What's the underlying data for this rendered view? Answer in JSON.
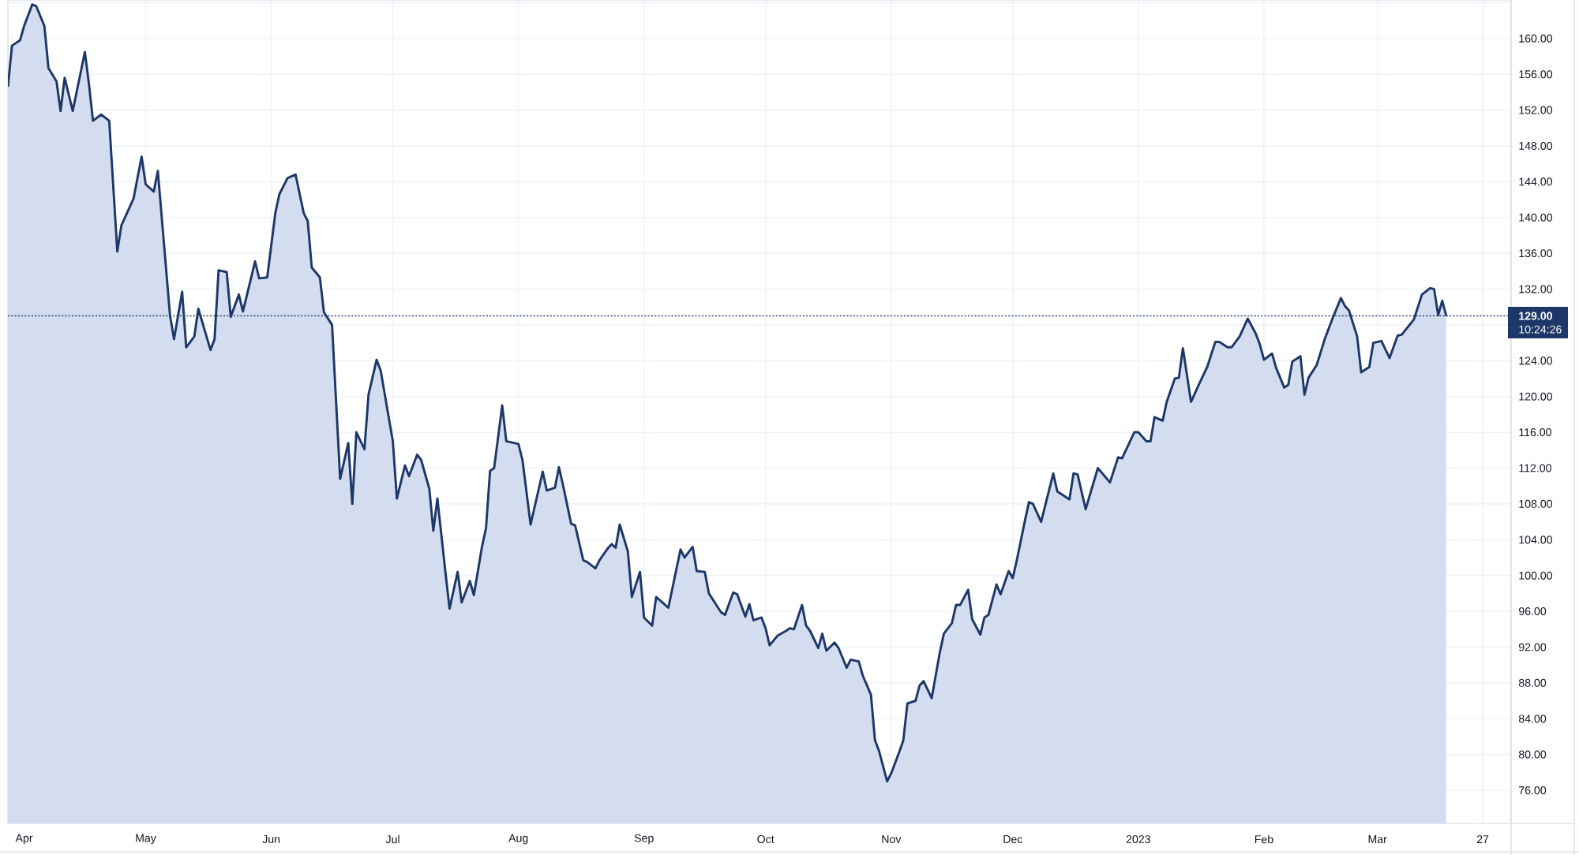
{
  "chart_data": {
    "type": "area",
    "color": "#1d3868",
    "x": [
      "2022-03-28",
      "2022-03-29",
      "2022-03-31",
      "2022-04-01",
      "2022-04-03",
      "2022-04-04",
      "2022-04-06",
      "2022-04-07",
      "2022-04-09",
      "2022-04-10",
      "2022-04-11",
      "2022-04-13",
      "2022-04-16",
      "2022-04-17",
      "2022-04-18",
      "2022-04-20",
      "2022-04-22",
      "2022-04-24",
      "2022-04-25",
      "2022-04-28",
      "2022-04-30",
      "2022-05-01",
      "2022-05-03",
      "2022-05-04",
      "2022-05-07",
      "2022-05-08",
      "2022-05-10",
      "2022-05-11",
      "2022-05-13",
      "2022-05-14",
      "2022-05-17",
      "2022-05-18",
      "2022-05-19",
      "2022-05-21",
      "2022-05-22",
      "2022-05-24",
      "2022-05-25",
      "2022-05-27",
      "2022-05-28",
      "2022-05-29",
      "2022-05-31",
      "2022-06-02",
      "2022-06-03",
      "2022-06-05",
      "2022-06-07",
      "2022-06-09",
      "2022-06-10",
      "2022-06-11",
      "2022-06-13",
      "2022-06-14",
      "2022-06-16",
      "2022-06-18",
      "2022-06-20",
      "2022-06-21",
      "2022-06-22",
      "2022-06-24",
      "2022-06-25",
      "2022-06-27",
      "2022-06-28",
      "2022-07-01",
      "2022-07-02",
      "2022-07-04",
      "2022-07-05",
      "2022-07-07",
      "2022-07-08",
      "2022-07-10",
      "2022-07-11",
      "2022-07-12",
      "2022-07-14",
      "2022-07-15",
      "2022-07-17",
      "2022-07-18",
      "2022-07-20",
      "2022-07-21",
      "2022-07-23",
      "2022-07-24",
      "2022-07-25",
      "2022-07-26",
      "2022-07-28",
      "2022-07-29",
      "2022-08-01",
      "2022-08-02",
      "2022-08-04",
      "2022-08-07",
      "2022-08-08",
      "2022-08-10",
      "2022-08-11",
      "2022-08-12",
      "2022-08-14",
      "2022-08-15",
      "2022-08-17",
      "2022-08-18",
      "2022-08-20",
      "2022-08-21",
      "2022-08-23",
      "2022-08-24",
      "2022-08-25",
      "2022-08-26",
      "2022-08-28",
      "2022-08-29",
      "2022-08-31",
      "2022-09-01",
      "2022-09-03",
      "2022-09-04",
      "2022-09-07",
      "2022-09-10",
      "2022-09-11",
      "2022-09-13",
      "2022-09-14",
      "2022-09-16",
      "2022-09-17",
      "2022-09-20",
      "2022-09-21",
      "2022-09-23",
      "2022-09-24",
      "2022-09-26",
      "2022-09-27",
      "2022-09-28",
      "2022-09-30",
      "2022-10-01",
      "2022-10-02",
      "2022-10-04",
      "2022-10-06",
      "2022-10-07",
      "2022-10-08",
      "2022-10-10",
      "2022-10-11",
      "2022-10-12",
      "2022-10-14",
      "2022-10-15",
      "2022-10-16",
      "2022-10-18",
      "2022-10-19",
      "2022-10-21",
      "2022-10-22",
      "2022-10-24",
      "2022-10-25",
      "2022-10-27",
      "2022-10-28",
      "2022-10-29",
      "2022-10-31",
      "2022-11-01",
      "2022-11-03",
      "2022-11-04",
      "2022-11-05",
      "2022-11-07",
      "2022-11-08",
      "2022-11-09",
      "2022-11-11",
      "2022-11-13",
      "2022-11-14",
      "2022-11-16",
      "2022-11-17",
      "2022-11-18",
      "2022-11-20",
      "2022-11-21",
      "2022-11-23",
      "2022-11-24",
      "2022-11-25",
      "2022-11-27",
      "2022-11-28",
      "2022-11-30",
      "2022-12-01",
      "2022-12-02",
      "2022-12-04",
      "2022-12-05",
      "2022-12-06",
      "2022-12-08",
      "2022-12-11",
      "2022-12-12",
      "2022-12-15",
      "2022-12-16",
      "2022-12-17",
      "2022-12-19",
      "2022-12-22",
      "2022-12-25",
      "2022-12-27",
      "2022-12-28",
      "2022-12-31",
      "2023-01-01",
      "2023-01-03",
      "2023-01-04",
      "2023-01-05",
      "2023-01-07",
      "2023-01-08",
      "2023-01-10",
      "2023-01-11",
      "2023-01-12",
      "2023-01-14",
      "2023-01-16",
      "2023-01-18",
      "2023-01-20",
      "2023-01-21",
      "2023-01-23",
      "2023-01-24",
      "2023-01-26",
      "2023-01-28",
      "2023-01-30",
      "2023-01-31",
      "2023-02-01",
      "2023-02-03",
      "2023-02-04",
      "2023-02-06",
      "2023-02-07",
      "2023-02-08",
      "2023-02-10",
      "2023-02-11",
      "2023-02-12",
      "2023-02-14",
      "2023-02-16",
      "2023-02-18",
      "2023-02-20",
      "2023-02-21",
      "2023-02-22",
      "2023-02-24",
      "2023-02-25",
      "2023-02-27",
      "2023-02-28",
      "2023-03-02",
      "2023-03-04",
      "2023-03-06",
      "2023-03-07",
      "2023-03-10",
      "2023-03-12",
      "2023-03-14",
      "2023-03-15",
      "2023-03-16",
      "2023-03-17",
      "2023-03-18"
    ],
    "values": [
      154.6,
      159.2,
      159.8,
      161.4,
      163.8,
      163.6,
      161.4,
      156.7,
      155.2,
      151.9,
      155.6,
      151.9,
      158.5,
      154.9,
      150.8,
      151.5,
      150.8,
      136.2,
      139.1,
      142.1,
      146.8,
      143.7,
      142.9,
      145.2,
      129.1,
      126.4,
      131.7,
      125.5,
      126.7,
      129.8,
      125.2,
      126.4,
      134.1,
      133.9,
      128.9,
      131.4,
      129.5,
      133.2,
      135.1,
      133.2,
      133.3,
      140.5,
      142.6,
      144.4,
      144.8,
      140.5,
      139.6,
      134.4,
      133.3,
      129.4,
      128.0,
      110.8,
      114.8,
      108.0,
      116.0,
      114.1,
      120.2,
      124.1,
      122.9,
      115.0,
      108.6,
      112.3,
      111.1,
      113.5,
      112.9,
      109.7,
      105.0,
      108.6,
      100.3,
      96.3,
      100.4,
      97.0,
      99.4,
      97.8,
      103.2,
      105.3,
      111.7,
      112.0,
      119.0,
      115.0,
      114.7,
      112.9,
      105.7,
      111.6,
      109.5,
      109.8,
      112.1,
      110.1,
      105.8,
      105.6,
      101.7,
      101.5,
      100.8,
      101.7,
      103.0,
      103.5,
      103.1,
      105.7,
      102.7,
      97.6,
      100.4,
      95.3,
      94.4,
      97.6,
      96.4,
      102.9,
      102.0,
      103.2,
      100.5,
      100.4,
      98.0,
      95.9,
      95.6,
      98.1,
      97.9,
      95.4,
      96.8,
      95.0,
      95.3,
      94.1,
      92.2,
      93.3,
      93.8,
      94.1,
      94.0,
      96.7,
      94.4,
      93.8,
      91.9,
      93.5,
      91.6,
      92.5,
      91.9,
      89.7,
      90.6,
      90.4,
      88.8,
      86.7,
      81.6,
      80.4,
      77.0,
      77.9,
      80.3,
      81.6,
      85.7,
      86.0,
      87.7,
      88.2,
      86.3,
      91.4,
      93.5,
      94.7,
      96.7,
      96.7,
      98.4,
      95.1,
      93.4,
      95.3,
      95.6,
      99.0,
      97.9,
      100.5,
      99.7,
      101.7,
      106.1,
      108.2,
      108.0,
      106.0,
      111.4,
      109.4,
      108.5,
      111.4,
      111.3,
      107.4,
      112.0,
      110.4,
      113.2,
      113.1,
      116.0,
      116.0,
      115.0,
      115.0,
      117.7,
      117.3,
      119.4,
      122.0,
      122.1,
      125.4,
      119.4,
      121.4,
      123.3,
      126.1,
      126.1,
      125.5,
      125.5,
      126.7,
      128.7,
      127.0,
      125.8,
      124.1,
      124.8,
      123.2,
      121.0,
      121.3,
      123.9,
      124.5,
      120.2,
      122.1,
      123.5,
      126.4,
      128.8,
      131.0,
      130.1,
      129.6,
      126.7,
      122.7,
      123.3,
      126.0,
      126.2,
      124.3,
      126.8,
      126.9,
      128.6,
      131.4,
      132.1,
      132.0,
      129.1,
      130.7,
      129.0
    ],
    "xlim": [
      "2022-03-28",
      "2023-04-03"
    ],
    "xticks": [
      {
        "value": "2022-04-01",
        "label": "Apr"
      },
      {
        "value": "2022-05-01",
        "label": "May"
      },
      {
        "value": "2022-06-01",
        "label": "Jun"
      },
      {
        "value": "2022-07-01",
        "label": "Jul"
      },
      {
        "value": "2022-08-01",
        "label": "Aug"
      },
      {
        "value": "2022-09-01",
        "label": "Sep"
      },
      {
        "value": "2022-10-01",
        "label": "Oct"
      },
      {
        "value": "2022-11-01",
        "label": "Nov"
      },
      {
        "value": "2022-12-01",
        "label": "Dec"
      },
      {
        "value": "2023-01-01",
        "label": "2023"
      },
      {
        "value": "2023-02-01",
        "label": "Feb"
      },
      {
        "value": "2023-03-01",
        "label": "Mar"
      },
      {
        "value": "2023-03-27",
        "label": "27"
      }
    ],
    "ylim": [
      72.3,
      164.3
    ],
    "yticks": [
      {
        "value": 76,
        "label": "76.00"
      },
      {
        "value": 80,
        "label": "80.00"
      },
      {
        "value": 84,
        "label": "84.00"
      },
      {
        "value": 88,
        "label": "88.00"
      },
      {
        "value": 92,
        "label": "92.00"
      },
      {
        "value": 96,
        "label": "96.00"
      },
      {
        "value": 100,
        "label": "100.00"
      },
      {
        "value": 104,
        "label": "104.00"
      },
      {
        "value": 108,
        "label": "108.00"
      },
      {
        "value": 112,
        "label": "112.00"
      },
      {
        "value": 116,
        "label": "116.00"
      },
      {
        "value": 120,
        "label": "120.00"
      },
      {
        "value": 124,
        "label": "124.00"
      },
      {
        "value": 128,
        "label": null
      },
      {
        "value": 132,
        "label": "132.00"
      },
      {
        "value": 136,
        "label": "136.00"
      },
      {
        "value": 140,
        "label": "140.00"
      },
      {
        "value": 144,
        "label": "144.00"
      },
      {
        "value": 148,
        "label": "148.00"
      },
      {
        "value": 152,
        "label": "152.00"
      },
      {
        "value": 156,
        "label": "156.00"
      },
      {
        "value": 160,
        "label": "160.00"
      },
      {
        "value": 164,
        "label": null
      }
    ],
    "grid": true,
    "ref_lines": [
      {
        "axis": "y",
        "value": 129,
        "label": "129.00",
        "color": "#1d3868",
        "line_style": "dotted"
      }
    ],
    "annotations": [
      "10:24:26"
    ]
  }
}
